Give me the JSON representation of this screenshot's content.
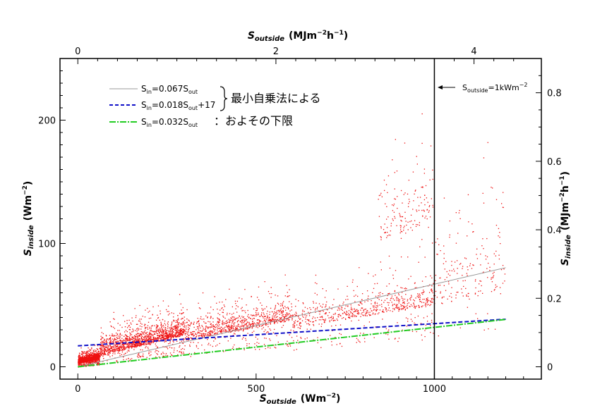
{
  "chart_data": {
    "type": "scatter",
    "x_axis": {
      "title_main": "S",
      "title_sub": "outside",
      "title_unit": "(Wm",
      "title_unit_sup": "−2",
      "title_unit_end": ")",
      "range": [
        -50,
        1300
      ],
      "ticks": [
        0,
        500,
        1000
      ],
      "tick_labels": [
        "0",
        "500",
        "1000"
      ]
    },
    "x2_axis": {
      "title_main": "S",
      "title_sub": "outside",
      "title_unit": "(MJm",
      "title_unit_sup1": "−2",
      "title_unit_mid": "h",
      "title_unit_sup2": "−1",
      "title_unit_end": ")",
      "range": [
        -0.18,
        4.68
      ],
      "ticks": [
        0,
        2,
        4
      ],
      "tick_labels": [
        "0",
        "2",
        "4"
      ]
    },
    "y_axis": {
      "title_main": "S",
      "title_sub": "inside",
      "title_unit": "(Wm",
      "title_unit_sup": "−2",
      "title_unit_end": ")",
      "range": [
        -10,
        250
      ],
      "ticks": [
        0,
        100,
        200
      ],
      "tick_labels": [
        "0",
        "100",
        "200"
      ]
    },
    "y2_axis": {
      "title_main": "S",
      "title_sub": "inside",
      "title_unit": "(MJm",
      "title_unit_sup1": "−2",
      "title_unit_mid": "h",
      "title_unit_sup2": "−1",
      "title_unit_end": ")",
      "range": [
        -0.036,
        0.9
      ],
      "ticks": [
        0,
        0.2,
        0.4,
        0.6,
        0.8
      ],
      "tick_labels": [
        "0",
        "0.2",
        "0.4",
        "0.6",
        "0.8"
      ]
    },
    "series": [
      {
        "name_main": "S",
        "name_sub1": "in",
        "name_mid": "=0.067S",
        "name_sub2": "out",
        "name_end": "",
        "kind": "line",
        "slope": 0.067,
        "intercept": 0,
        "x": [
          0,
          1200
        ],
        "color": "#9a9a9a",
        "dash": "none"
      },
      {
        "name_main": "S",
        "name_sub1": "in",
        "name_mid": "=0.018S",
        "name_sub2": "out",
        "name_end": "+17",
        "kind": "line",
        "slope": 0.018,
        "intercept": 17,
        "x": [
          0,
          1200
        ],
        "color": "#1010c8",
        "dash": "6,3"
      },
      {
        "name_main": "S",
        "name_sub1": "in",
        "name_mid": "=0.032S",
        "name_sub2": "out",
        "name_end": "",
        "kind": "line",
        "slope": 0.032,
        "intercept": 0,
        "x": [
          0,
          1200
        ],
        "color": "#22cc22",
        "dash": "9,2,2,2"
      },
      {
        "kind": "scatter",
        "color": "#ee1111",
        "clusters": [
          {
            "x": [
              0,
              60
            ],
            "y_base": 0.06,
            "y_off": 3,
            "spread": 6,
            "n": 1400
          },
          {
            "x": [
              60,
              300
            ],
            "y_base": 0.07,
            "y_off": 5,
            "spread": 18,
            "n": 1500
          },
          {
            "x": [
              300,
              600
            ],
            "y_base": 0.055,
            "y_off": 5,
            "spread": 20,
            "n": 900
          },
          {
            "x": [
              600,
              1000
            ],
            "y_base": 0.045,
            "y_off": 5,
            "spread": 22,
            "n": 650
          },
          {
            "x": [
              840,
              995
            ],
            "y_base": 0.12,
            "y_off": 0,
            "spread": 60,
            "n": 180
          },
          {
            "x": [
              1000,
              1200
            ],
            "y_base": 0.05,
            "y_off": 0,
            "spread": 70,
            "n": 190
          }
        ]
      }
    ],
    "brace_note": "最小自乗法による",
    "lower_bound_note": "：およその下限",
    "reference_line": {
      "x": 1000,
      "label_main": "S",
      "label_sub": "outside",
      "label_mid": "=1kWm",
      "label_sup": "−2"
    },
    "grid": false,
    "legend_position": "top-left"
  }
}
